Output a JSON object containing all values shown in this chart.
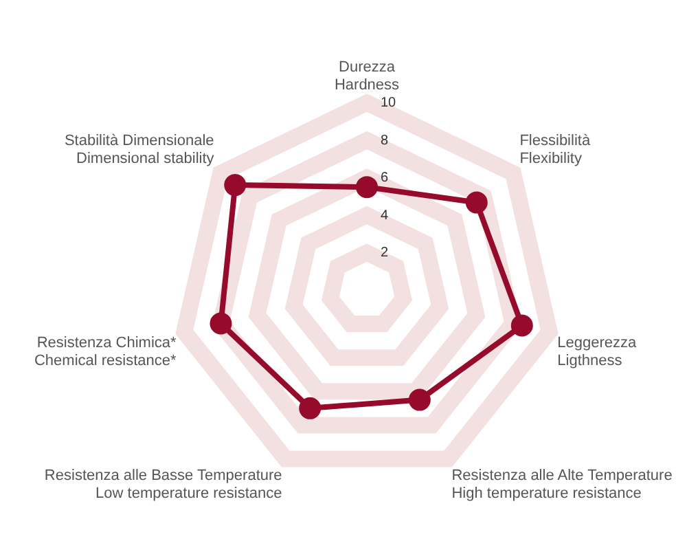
{
  "chart_data": {
    "type": "radar",
    "categories": [
      "Durezza\nHardness",
      "Flessibilità\nFlexibility",
      "Leggerezza\nLigthness",
      "Resistenza alle Alte Temperature\nHigh temperature resistance",
      "Resistenza alle Basse Temperature\nLow temperature resistance",
      "Resistenza Chimica*\nChemical resistance*",
      "Stabilità Dimensionale\nDimensional stability"
    ],
    "series": [
      {
        "color": "#960a2c",
        "values": [
          5.5,
          7.5,
          8.5,
          6.5,
          7,
          8,
          9
        ]
      }
    ],
    "ylim": [
      0,
      10
    ],
    "yticks": [
      2,
      4,
      6,
      8,
      10
    ],
    "grid": true,
    "marker": "circle",
    "line_style": "solid",
    "legend": false
  }
}
